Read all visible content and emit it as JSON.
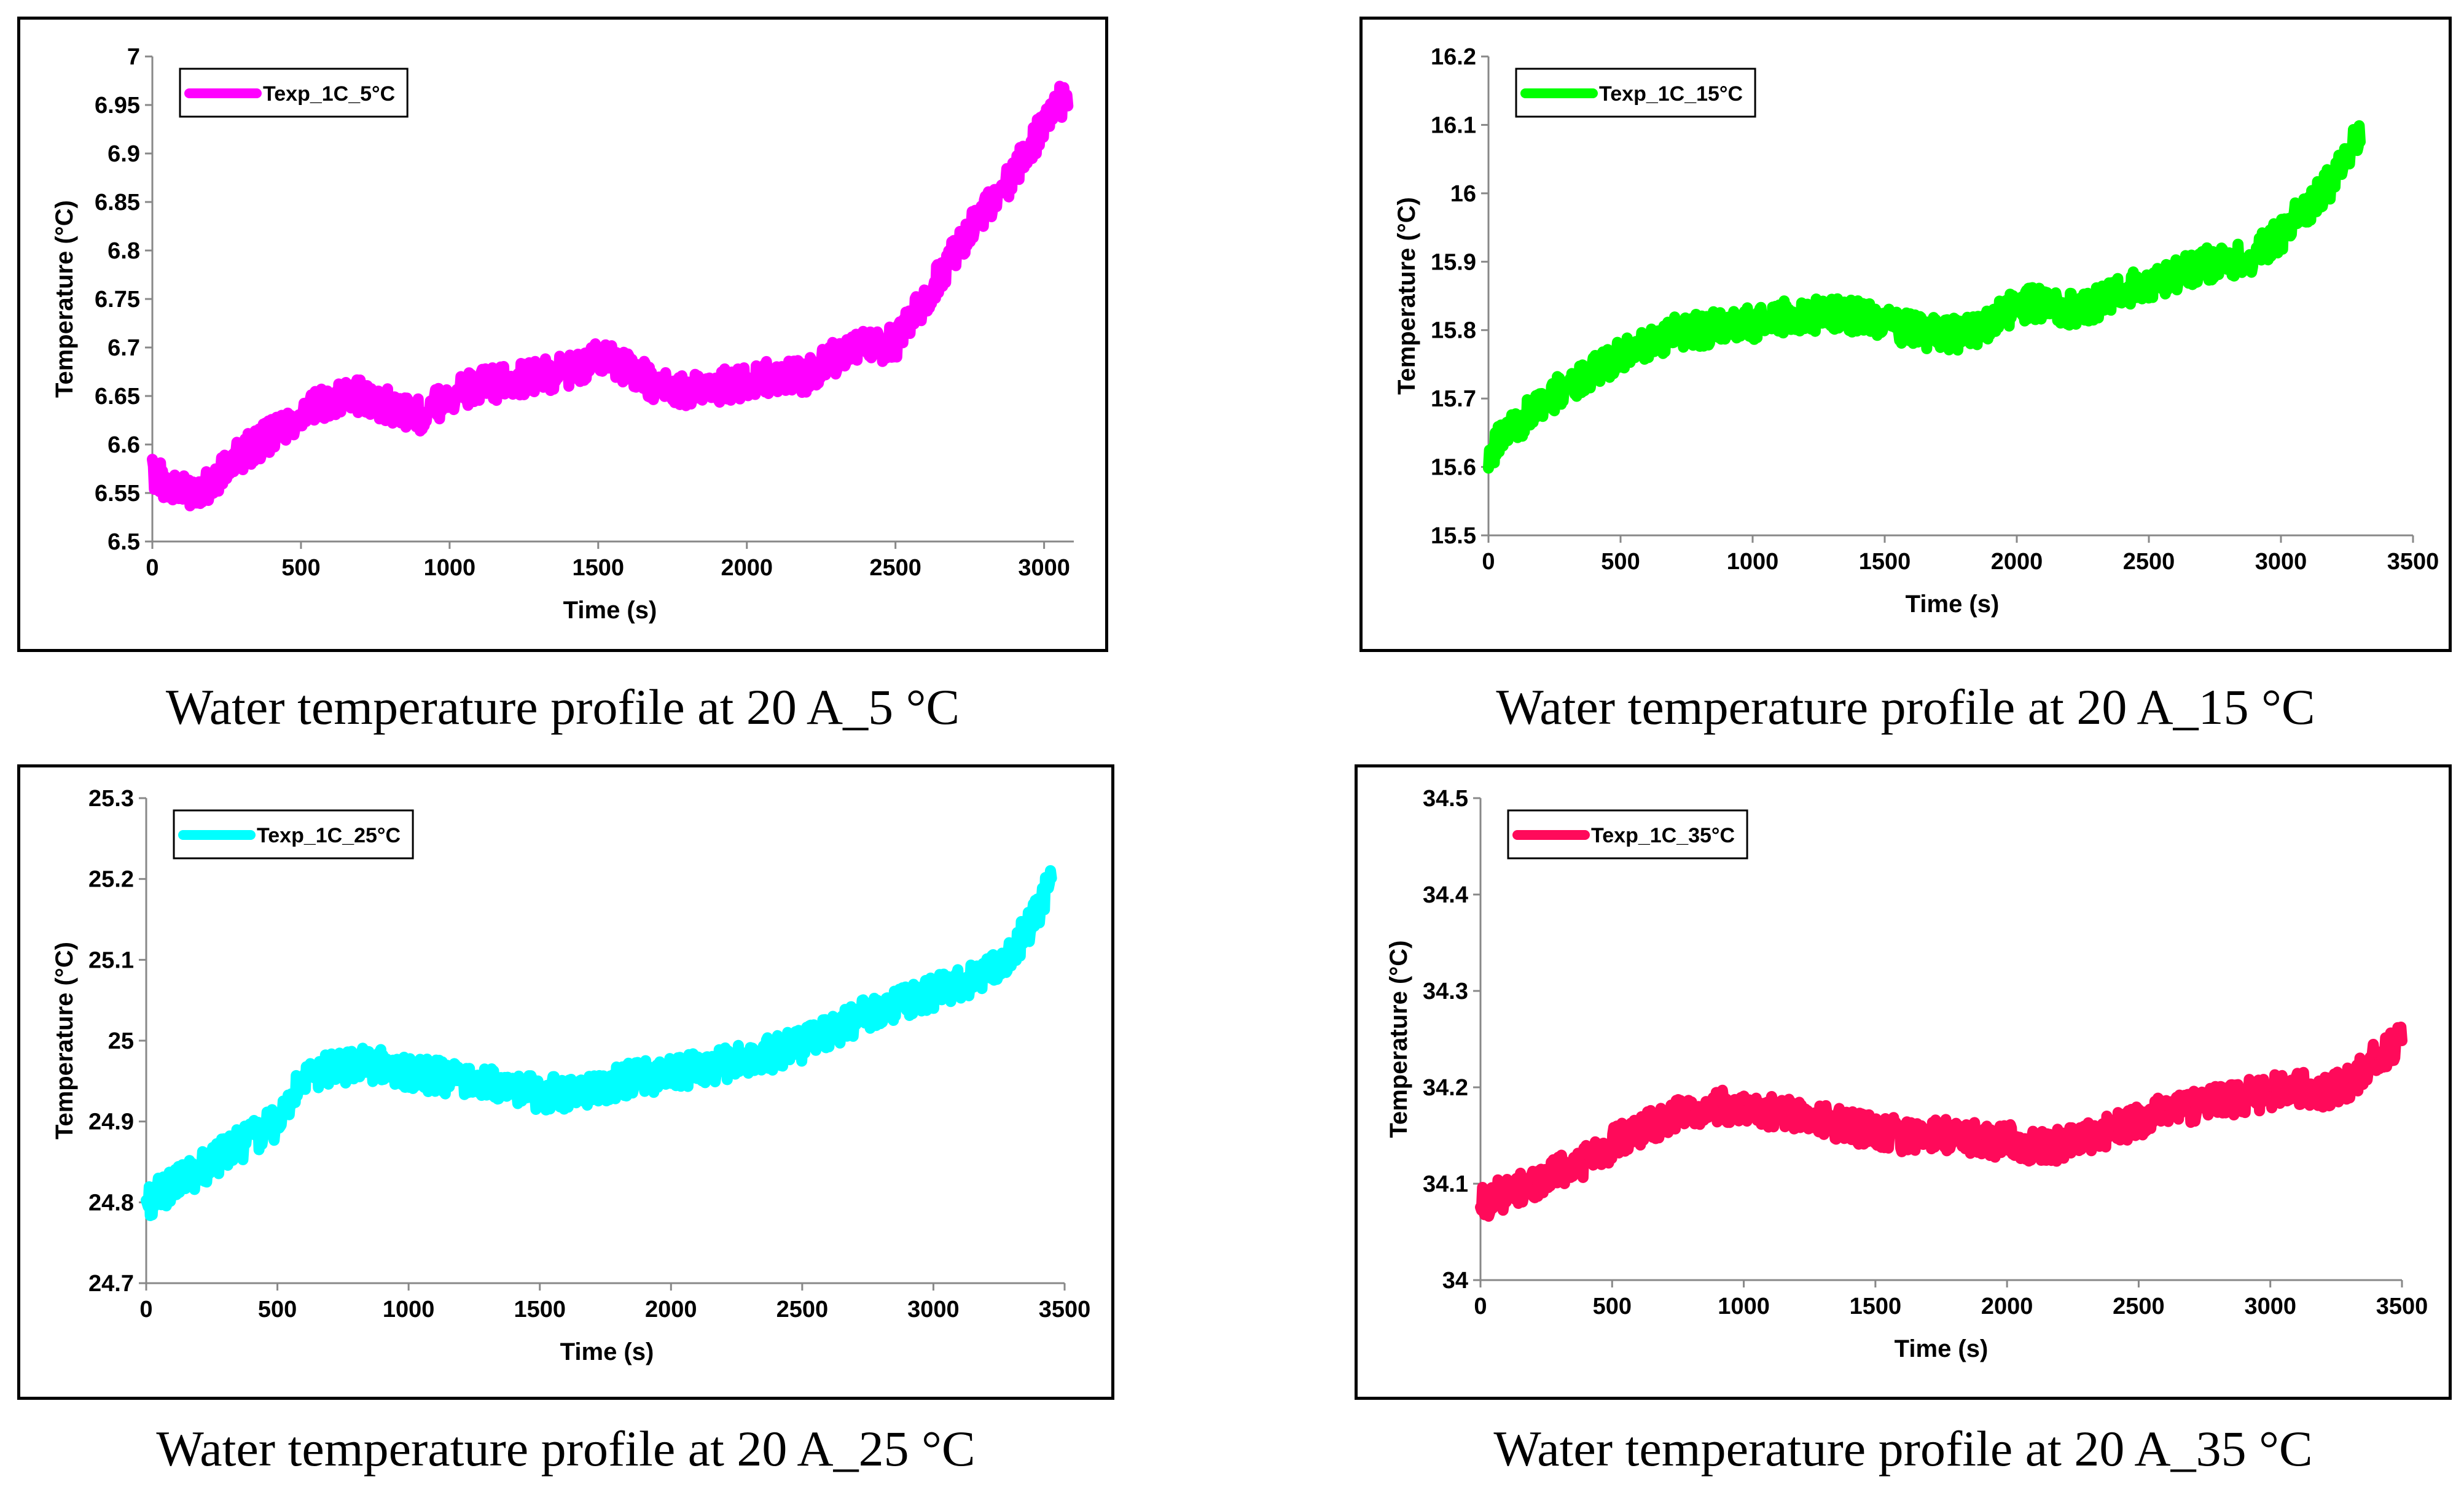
{
  "captions": [
    "Water temperature profile at 20 A_5 °C",
    "Water temperature profile at 20 A_15 °C",
    "Water temperature profile at 20 A_25 °C",
    "Water temperature profile at 20 A_35 °C"
  ],
  "chart_data": [
    {
      "type": "line",
      "title": "",
      "xlabel": "Time (s)",
      "ylabel": "Temperature (°C)",
      "xlim": [
        0,
        3100
      ],
      "ylim": [
        6.5,
        7.0
      ],
      "xticks": [
        "0",
        "500",
        "1000",
        "1500",
        "2000",
        "2500",
        "3000"
      ],
      "yticks": [
        "6.5",
        "6.55",
        "6.6",
        "6.65",
        "6.7",
        "6.75",
        "6.8",
        "6.85",
        "6.9",
        "6.95",
        "7"
      ],
      "legend_position": "top-left",
      "grid": false,
      "series": [
        {
          "name": "Texp_1C_5°C",
          "color": "#ff00ff",
          "x": [
            0,
            100,
            200,
            300,
            400,
            500,
            600,
            700,
            800,
            900,
            1000,
            1100,
            1200,
            1300,
            1400,
            1500,
            1600,
            1700,
            1800,
            1900,
            2000,
            2100,
            2200,
            2300,
            2400,
            2500,
            2600,
            2700,
            2800,
            2900,
            3000,
            3050,
            3080
          ],
          "y": [
            6.57,
            6.55,
            6.56,
            6.59,
            6.61,
            6.63,
            6.645,
            6.65,
            6.64,
            6.63,
            6.65,
            6.66,
            6.665,
            6.67,
            6.675,
            6.69,
            6.68,
            6.66,
            6.655,
            6.66,
            6.665,
            6.67,
            6.67,
            6.69,
            6.7,
            6.705,
            6.75,
            6.8,
            6.84,
            6.88,
            6.93,
            6.955,
            6.95
          ]
        }
      ]
    },
    {
      "type": "line",
      "title": "",
      "xlabel": "Time (s)",
      "ylabel": "Temperature (°C)",
      "xlim": [
        0,
        3500
      ],
      "ylim": [
        15.5,
        16.2
      ],
      "xticks": [
        "0",
        "500",
        "1000",
        "1500",
        "2000",
        "2500",
        "3000",
        "3500"
      ],
      "yticks": [
        "15.5",
        "15.6",
        "15.7",
        "15.8",
        "15.9",
        "16",
        "16.1",
        "16.2"
      ],
      "legend_position": "top-left",
      "grid": false,
      "series": [
        {
          "name": "Texp_1C_15°C",
          "color": "#00ff00",
          "x": [
            0,
            100,
            200,
            300,
            400,
            500,
            600,
            700,
            800,
            900,
            1000,
            1100,
            1200,
            1300,
            1400,
            1500,
            1600,
            1700,
            1800,
            1900,
            2000,
            2100,
            2200,
            2300,
            2400,
            2500,
            2600,
            2700,
            2800,
            2900,
            3000,
            3100,
            3200,
            3300
          ],
          "y": [
            15.62,
            15.66,
            15.69,
            15.72,
            15.74,
            15.76,
            15.78,
            15.795,
            15.8,
            15.805,
            15.81,
            15.82,
            15.82,
            15.825,
            15.82,
            15.81,
            15.8,
            15.795,
            15.795,
            15.81,
            15.835,
            15.84,
            15.83,
            15.84,
            15.855,
            15.87,
            15.88,
            15.895,
            15.9,
            15.91,
            15.94,
            15.98,
            16.02,
            16.09
          ]
        }
      ]
    },
    {
      "type": "line",
      "title": "",
      "xlabel": "Time (s)",
      "ylabel": "Temperature (°C)",
      "xlim": [
        0,
        3500
      ],
      "ylim": [
        24.7,
        25.3
      ],
      "xticks": [
        "0",
        "500",
        "1000",
        "1500",
        "2000",
        "2500",
        "3000",
        "3500"
      ],
      "yticks": [
        "24.7",
        "24.8",
        "24.9",
        "25",
        "25.1",
        "25.2",
        "25.3"
      ],
      "legend_position": "top-left",
      "grid": false,
      "series": [
        {
          "name": "Texp_1C_25°C",
          "color": "#00ffff",
          "x": [
            0,
            100,
            200,
            300,
            400,
            500,
            600,
            700,
            800,
            900,
            1000,
            1100,
            1200,
            1300,
            1400,
            1500,
            1600,
            1700,
            1800,
            1900,
            2000,
            2100,
            2200,
            2300,
            2400,
            2500,
            2600,
            2700,
            2800,
            2900,
            3000,
            3100,
            3200,
            3300,
            3400,
            3450
          ],
          "y": [
            24.8,
            24.82,
            24.84,
            24.86,
            24.88,
            24.9,
            24.95,
            24.965,
            24.97,
            24.97,
            24.96,
            24.955,
            24.955,
            24.945,
            24.94,
            24.935,
            24.935,
            24.94,
            24.95,
            24.955,
            24.96,
            24.965,
            24.97,
            24.98,
            24.985,
            24.995,
            25.01,
            25.025,
            25.04,
            25.05,
            25.06,
            25.07,
            25.08,
            25.11,
            25.16,
            25.2
          ]
        }
      ]
    },
    {
      "type": "line",
      "title": "",
      "xlabel": "Time (s)",
      "ylabel": "Temperature (°C)",
      "xlim": [
        0,
        3500
      ],
      "ylim": [
        34.0,
        34.5
      ],
      "xticks": [
        "0",
        "500",
        "1000",
        "1500",
        "2000",
        "2500",
        "3000",
        "3500"
      ],
      "yticks": [
        "34",
        "34.1",
        "34.2",
        "34.3",
        "34.4",
        "34.5"
      ],
      "legend_position": "top-left",
      "grid": false,
      "series": [
        {
          "name": "Texp_1C_35°C",
          "color": "#ff0a5a",
          "x": [
            0,
            100,
            200,
            300,
            400,
            500,
            600,
            700,
            800,
            900,
            1000,
            1100,
            1200,
            1300,
            1400,
            1500,
            1600,
            1700,
            1800,
            1900,
            2000,
            2100,
            2200,
            2300,
            2400,
            2500,
            2600,
            2700,
            2800,
            2900,
            3000,
            3100,
            3200,
            3300,
            3400,
            3500
          ],
          "y": [
            34.08,
            34.09,
            34.1,
            34.115,
            34.125,
            34.14,
            34.155,
            34.165,
            34.175,
            34.18,
            34.18,
            34.175,
            34.17,
            34.165,
            34.16,
            34.155,
            34.15,
            34.15,
            34.15,
            34.145,
            34.145,
            34.14,
            34.14,
            34.15,
            34.155,
            34.165,
            34.175,
            34.18,
            34.185,
            34.19,
            34.195,
            34.2,
            34.195,
            34.205,
            34.23,
            34.25
          ]
        }
      ]
    }
  ]
}
